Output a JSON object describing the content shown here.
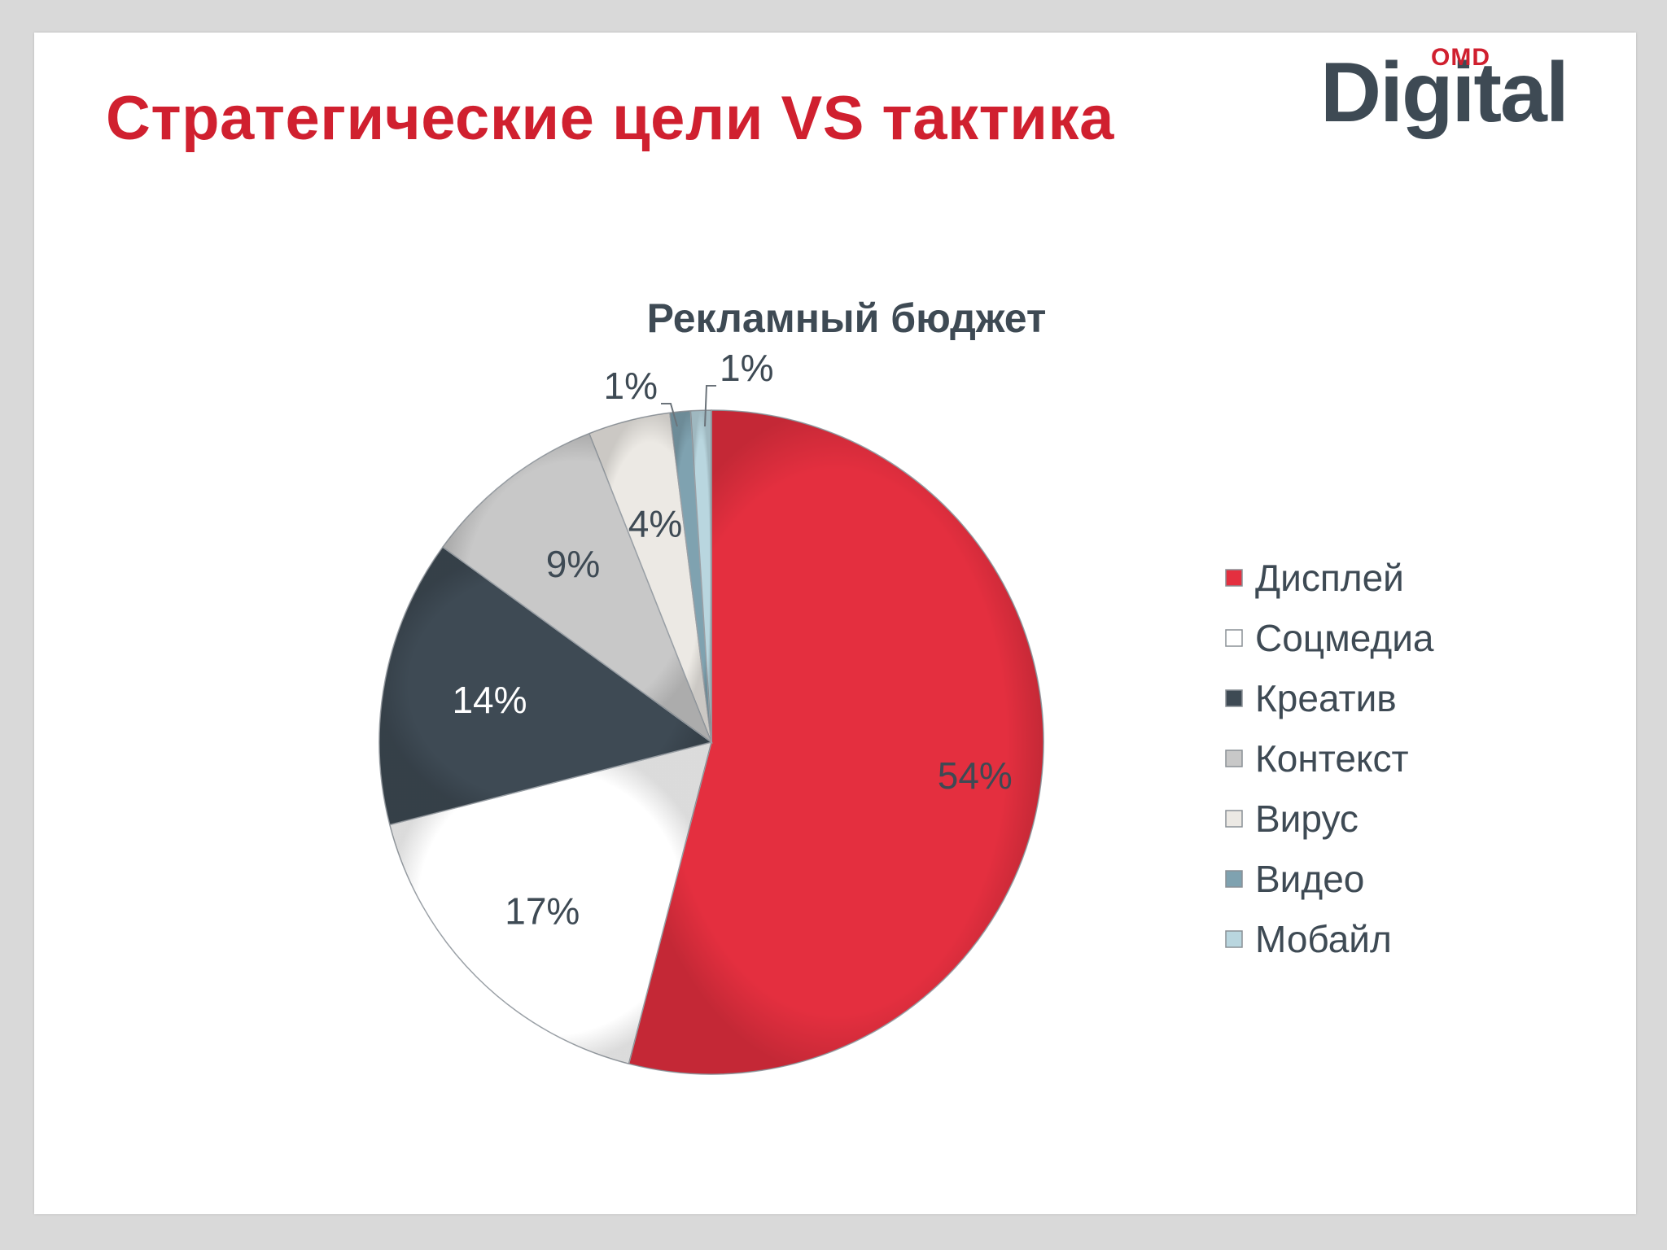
{
  "slide": {
    "title": "Стратегические цели VS тактика",
    "logo": {
      "superscript": "OMD",
      "word": "Digital"
    }
  },
  "colors": {
    "title": "#d0202f",
    "text": "#3e4a54",
    "logo_text": "#3e4a54",
    "background": "#ffffff"
  },
  "chart_data": {
    "type": "pie",
    "title": "Рекламный бюджет",
    "legend_position": "right",
    "slices": [
      {
        "label": "Дисплей",
        "value": 54,
        "display": "54%",
        "color": "#e42f3f"
      },
      {
        "label": "Соцмедиа",
        "value": 17,
        "display": "17%",
        "color": "#ffffff"
      },
      {
        "label": "Креатив",
        "value": 14,
        "display": "14%",
        "color": "#3e4a54"
      },
      {
        "label": "Контекст",
        "value": 9,
        "display": "9%",
        "color": "#c8c8c8"
      },
      {
        "label": "Вирус",
        "value": 4,
        "display": "4%",
        "color": "#ece9e4"
      },
      {
        "label": "Видео",
        "value": 1,
        "display": "1%",
        "color": "#7fa2b0"
      },
      {
        "label": "Мобайл",
        "value": 1,
        "display": "1%",
        "color": "#b9d6df"
      }
    ]
  }
}
